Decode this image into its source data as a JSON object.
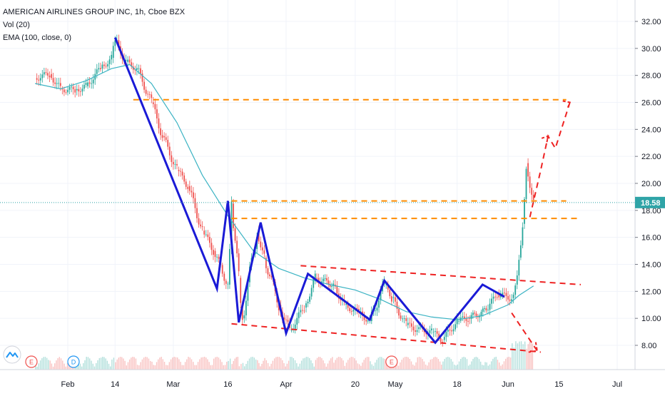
{
  "header": {
    "title": "AMERICAN AIRLINES GROUP INC, 1h, Cboe BZX",
    "studies": [
      "Vol (20)",
      "EMA (100, close, 0)"
    ]
  },
  "events": {
    "earnings_label": "E",
    "dividend_label": "D"
  },
  "colors": {
    "up": "#26a69a",
    "down": "#ef5350",
    "ema": "#3bb3c3",
    "pattern": "#1a1ad6",
    "trend_red": "#ee2222",
    "level_orange": "#ff8c00",
    "price_badge": "#2fa4a7",
    "dividend": "#2196f3"
  },
  "chart_data": {
    "type": "line",
    "title": "AMERICAN AIRLINES GROUP INC, 1h, Cboe BZX",
    "xlabel": "",
    "ylabel": "",
    "ylim": [
      6.5,
      32.5
    ],
    "y_ticks": [
      8.0,
      10.0,
      12.0,
      14.0,
      16.0,
      18.0,
      20.0,
      22.0,
      24.0,
      26.0,
      28.0,
      30.0,
      32.0
    ],
    "y_tick_labels": [
      "8.00",
      "10.00",
      "12.00",
      "14.00",
      "16.00",
      "18.00",
      "20.00",
      "22.00",
      "24.00",
      "26.00",
      "28.00",
      "30.00",
      "32.00"
    ],
    "x_ticks": [
      {
        "date": "2020-02-01",
        "label": "Feb"
      },
      {
        "date": "2020-02-14",
        "label": "14"
      },
      {
        "date": "2020-03-01",
        "label": "Mar"
      },
      {
        "date": "2020-03-16",
        "label": "16"
      },
      {
        "date": "2020-04-01",
        "label": "Apr"
      },
      {
        "date": "2020-04-20",
        "label": "20"
      },
      {
        "date": "2020-05-01",
        "label": "May"
      },
      {
        "date": "2020-05-18",
        "label": "18"
      },
      {
        "date": "2020-06-01",
        "label": "Jun"
      },
      {
        "date": "2020-06-15",
        "label": "15"
      },
      {
        "date": "2020-07-01",
        "label": "Jul"
      }
    ],
    "x_range": [
      "2020-01-23",
      "2020-07-02"
    ],
    "last_price": 18.58,
    "last_price_label": "18.58",
    "series": [
      {
        "name": "AMERICAN AIRLINES GROUP INC",
        "kind": "price",
        "x": [
          "2020-01-23",
          "2020-01-27",
          "2020-01-30",
          "2020-02-03",
          "2020-02-06",
          "2020-02-10",
          "2020-02-13",
          "2020-02-14",
          "2020-02-17",
          "2020-02-20",
          "2020-02-24",
          "2020-02-27",
          "2020-03-02",
          "2020-03-05",
          "2020-03-09",
          "2020-03-12",
          "2020-03-16",
          "2020-03-17",
          "2020-03-19",
          "2020-03-20",
          "2020-03-24",
          "2020-03-26",
          "2020-03-30",
          "2020-04-02",
          "2020-04-06",
          "2020-04-09",
          "2020-04-14",
          "2020-04-17",
          "2020-04-21",
          "2020-04-24",
          "2020-04-28",
          "2020-04-30",
          "2020-05-04",
          "2020-05-07",
          "2020-05-11",
          "2020-05-14",
          "2020-05-18",
          "2020-05-21",
          "2020-05-26",
          "2020-05-29",
          "2020-06-02",
          "2020-06-03",
          "2020-06-04",
          "2020-06-05",
          "2020-06-06",
          "2020-06-08"
        ],
        "y": [
          27.8,
          28.1,
          27.0,
          26.9,
          27.2,
          28.5,
          29.3,
          30.6,
          29.0,
          28.5,
          26.0,
          23.5,
          21.0,
          19.8,
          16.5,
          15.0,
          12.5,
          18.5,
          13.0,
          10.0,
          16.5,
          14.5,
          11.0,
          9.1,
          10.8,
          13.0,
          12.5,
          11.0,
          10.4,
          9.8,
          12.5,
          11.5,
          9.5,
          9.2,
          9.0,
          8.4,
          9.8,
          10.0,
          10.6,
          11.8,
          11.5,
          12.5,
          14.5,
          17.0,
          21.5,
          18.58
        ]
      },
      {
        "name": "EMA (100, close, 0)",
        "kind": "ema",
        "x": [
          "2020-01-23",
          "2020-01-30",
          "2020-02-06",
          "2020-02-13",
          "2020-02-18",
          "2020-02-24",
          "2020-03-02",
          "2020-03-09",
          "2020-03-16",
          "2020-03-23",
          "2020-03-30",
          "2020-04-06",
          "2020-04-13",
          "2020-04-20",
          "2020-04-27",
          "2020-05-04",
          "2020-05-11",
          "2020-05-18",
          "2020-05-25",
          "2020-06-01",
          "2020-06-04",
          "2020-06-08"
        ],
        "y": [
          27.4,
          27.0,
          27.6,
          28.5,
          28.8,
          27.4,
          24.5,
          20.6,
          17.6,
          15.0,
          13.7,
          13.0,
          12.5,
          12.1,
          11.4,
          10.5,
          10.1,
          9.9,
          10.2,
          11.0,
          11.7,
          12.4
        ]
      }
    ],
    "annotations": {
      "w_pattern_points": [
        {
          "x": "2020-02-14",
          "y": 30.8
        },
        {
          "x": "2020-03-13",
          "y": 12.2
        },
        {
          "x": "2020-03-16",
          "y": 18.7
        },
        {
          "x": "2020-03-19",
          "y": 9.7
        },
        {
          "x": "2020-03-25",
          "y": 17.1
        },
        {
          "x": "2020-04-01",
          "y": 8.9
        },
        {
          "x": "2020-04-07",
          "y": 13.3
        },
        {
          "x": "2020-04-24",
          "y": 9.9
        },
        {
          "x": "2020-04-28",
          "y": 12.8
        },
        {
          "x": "2020-05-12",
          "y": 8.2
        },
        {
          "x": "2020-05-25",
          "y": 12.5
        },
        {
          "x": "2020-05-31",
          "y": 11.6
        }
      ],
      "upper_channel": {
        "from": {
          "x": "2020-04-05",
          "y": 13.9
        },
        "to": {
          "x": "2020-06-21",
          "y": 12.5
        }
      },
      "lower_channel": {
        "from": {
          "x": "2020-03-17",
          "y": 9.6
        },
        "to": {
          "x": "2020-06-10",
          "y": 7.5
        }
      },
      "orange_levels": [
        {
          "from": "2020-02-19",
          "to": "2020-06-17",
          "y": 26.2
        },
        {
          "from": "2020-03-17",
          "to": "2020-06-17",
          "y": 18.7
        },
        {
          "from": "2020-03-17",
          "to": "2020-06-20",
          "y": 17.4
        }
      ],
      "projection_up": [
        {
          "x": "2020-06-07",
          "y": 17.5
        },
        {
          "x": "2020-06-10",
          "y": 21.0
        },
        {
          "x": "2020-06-12",
          "y": 23.5
        },
        {
          "x": "2020-06-14",
          "y": 22.6
        },
        {
          "x": "2020-06-18",
          "y": 26.0
        }
      ],
      "projection_down": {
        "from": {
          "x": "2020-06-02",
          "y": 10.4
        },
        "to": {
          "x": "2020-06-09",
          "y": 7.6
        }
      },
      "earnings_dates": [
        "2020-01-23",
        "2020-04-30"
      ],
      "dividend_dates": [
        "2020-02-01"
      ]
    },
    "grid": true,
    "legend": "top-left"
  }
}
